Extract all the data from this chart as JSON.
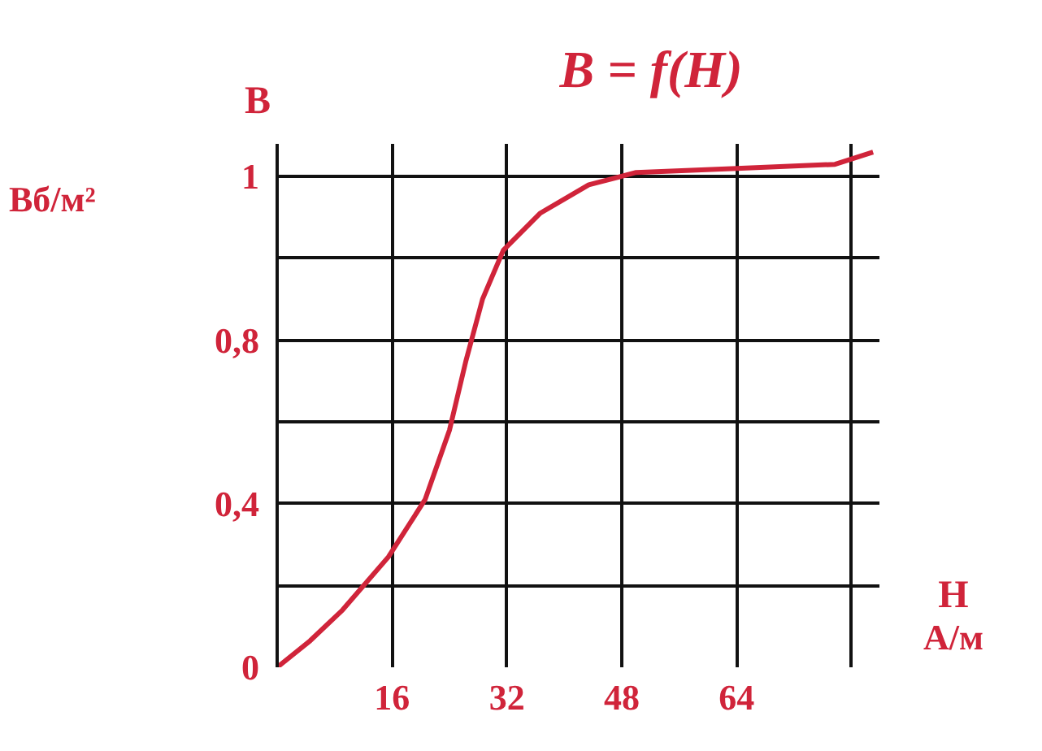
{
  "chart_data": {
    "type": "line",
    "title": "В = f(H)",
    "xlabel": "H",
    "ylabel": "В",
    "annotations": [
      "Вб/м²",
      "А/м"
    ],
    "x": [
      0,
      4.6,
      9.1,
      15.5,
      20.6,
      24,
      26.3,
      28.6,
      31.5,
      36.6,
      43.4,
      50,
      64,
      77.7,
      83
    ],
    "values": [
      0,
      0.065,
      0.14,
      0.27,
      0.41,
      0.58,
      0.75,
      0.9,
      1.02,
      1.11,
      1.18,
      1.21,
      1.22,
      1.23,
      1.26
    ],
    "color": "#d0243a",
    "xlim": [
      0,
      84
    ],
    "ylim": [
      0,
      1.28
    ],
    "xticks": [
      16,
      32,
      48,
      64,
      {
        "value": 80,
        "label": null
      }
    ],
    "yticks": [
      0,
      {
        "value": 0.2,
        "label": null
      },
      {
        "value": 0.4,
        "label": "0,4"
      },
      {
        "value": 0.6,
        "label": null
      },
      {
        "value": 0.8,
        "label": "0,8"
      },
      {
        "value": 1.0,
        "label": null
      },
      {
        "value": 1.2,
        "label": "1"
      }
    ],
    "grid": true
  }
}
